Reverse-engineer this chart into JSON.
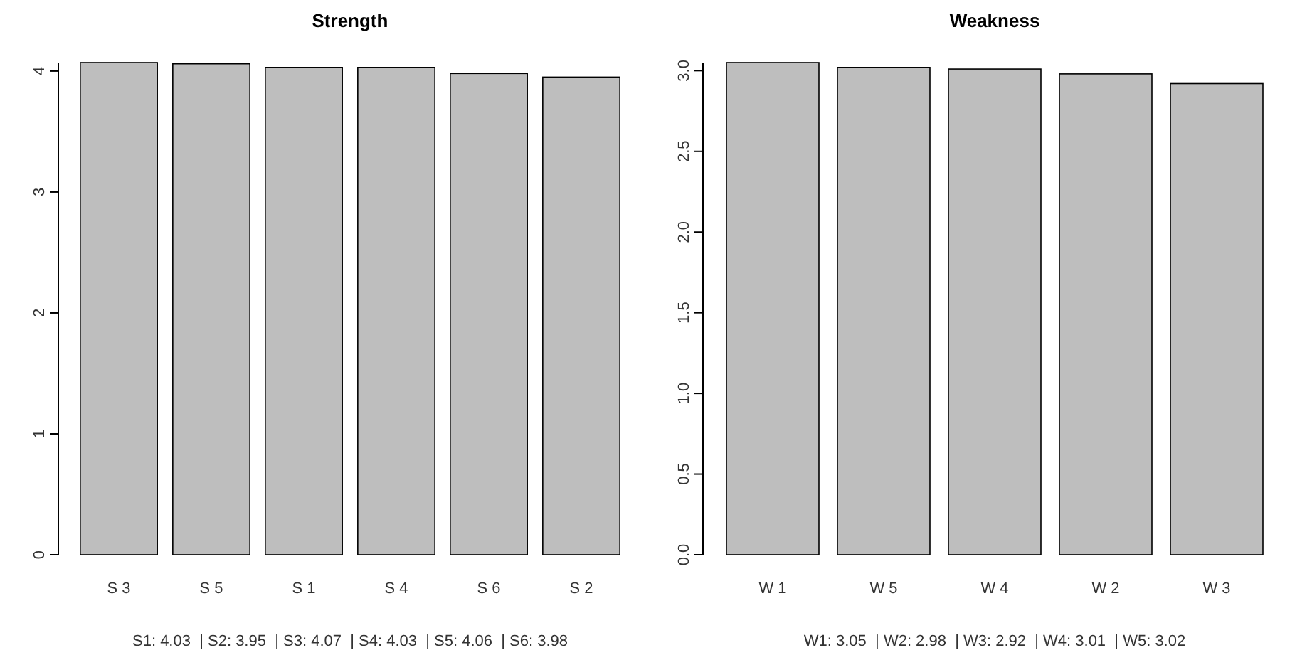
{
  "chart_data": [
    {
      "type": "bar",
      "title": "Strength",
      "categories": [
        "S 3",
        "S 5",
        "S 1",
        "S 4",
        "S 6",
        "S 2"
      ],
      "values": [
        4.07,
        4.06,
        4.03,
        4.03,
        3.98,
        3.95
      ],
      "color": "#bebebe",
      "ylim": [
        0,
        4.07
      ],
      "yticks": [
        0,
        1,
        2,
        3,
        4
      ],
      "annotations": [
        "S1: 4.03  | S2: 3.95  | S3: 4.07  | S4: 4.03  | S5: 4.06  | S6: 3.98"
      ]
    },
    {
      "type": "bar",
      "title": "Weakness",
      "categories": [
        "W 1",
        "W 5",
        "W 4",
        "W 2",
        "W 3"
      ],
      "values": [
        3.05,
        3.02,
        3.01,
        2.98,
        2.92
      ],
      "color": "#bebebe",
      "ylim": [
        0,
        3.05
      ],
      "yticks": [
        {
          "value": 0,
          "label": "0.0"
        },
        {
          "value": 0.5,
          "label": "0.5"
        },
        {
          "value": 1,
          "label": "1.0"
        },
        {
          "value": 1.5,
          "label": "1.5"
        },
        {
          "value": 2,
          "label": "2.0"
        },
        {
          "value": 2.5,
          "label": "2.5"
        },
        {
          "value": 3,
          "label": "3.0"
        }
      ],
      "annotations": [
        "W1: 3.05  | W2: 2.98  | W3: 2.92  | W4: 3.01  | W5: 3.02"
      ]
    }
  ]
}
